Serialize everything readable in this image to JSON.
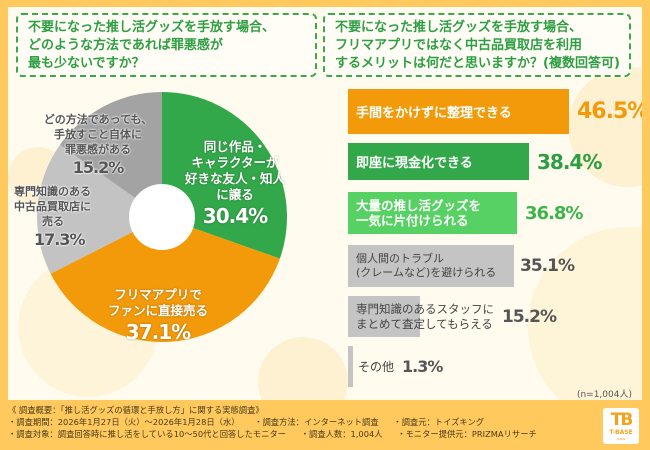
{
  "left_question": {
    "lines": [
      "不要になった推し活グッズを手放す場合、",
      "どのような方法であれば罪悪感が",
      "最も少ないですか？"
    ]
  },
  "right_question": {
    "lines": [
      "不要になった推し活グッズを手放す場合、",
      "フリマアプリではなく中古品買取店を利用",
      "するメリットは何だと思いますか？(複数回答可)"
    ]
  },
  "pie": {
    "slices": [
      {
        "lines": [
          "同じ作品・",
          "キャラクターが",
          "好きな友人・知人",
          "に譲る"
        ],
        "pct": "30.4%",
        "color": "#33A84A"
      },
      {
        "lines": [
          "フリマアプリで",
          "ファンに直接売る"
        ],
        "pct": "37.1%",
        "color": "#F39A0A"
      },
      {
        "lines": [
          "専門知識のある",
          "中古品買取店に",
          "売る"
        ],
        "pct": "17.3%",
        "color": "#C3C3C3"
      },
      {
        "lines": [
          "どの方法であっても、",
          "手放すこと自体に",
          "罪悪感がある"
        ],
        "pct": "15.2%",
        "color": "#A3A3A3"
      }
    ]
  },
  "bars": {
    "items": [
      {
        "lines": [
          "手間をかけずに整理できる"
        ],
        "pct": "46.5%",
        "color": "#F39A0A",
        "pct_color": "#F39A0A"
      },
      {
        "lines": [
          "即座に現金化できる"
        ],
        "pct": "38.4%",
        "color": "#33A84A",
        "pct_color": "#2E9E43"
      },
      {
        "lines": [
          "大量の推し活グッズを",
          "一気に片付けられる"
        ],
        "pct": "36.8%",
        "color": "#57D163",
        "pct_color": "#3BB54A"
      },
      {
        "lines": [
          "個人間のトラブル",
          "(クレームなど)を避けられる"
        ],
        "pct": "35.1%",
        "color": "#C4C4C4",
        "pct_color": "#555555"
      },
      {
        "lines": [
          "専門知識のあるスタッフに",
          "まとめて査定してもらえる"
        ],
        "pct": "15.2%",
        "color": "#C4C4C4",
        "pct_color": "#555555"
      },
      {
        "lines": [
          "その他"
        ],
        "pct": "1.3%",
        "color": "#C4C4C4",
        "pct_color": "#555555"
      }
    ],
    "n_note": "(n=1,004人)"
  },
  "footer": {
    "line1": "《 調査概要：「推し活グッズの循環と手放し方」に関する実態調査》",
    "period": "・調査期間：2026年1月27日（火）～2026年1月28日（水）",
    "method": "・調査方法：インターネット調査",
    "source": "・調査元：トイズキング",
    "target": "・調査対象：調査回答時に推し活をしている10～50代と回答したモニター",
    "count": "・調査人数：1,004人",
    "provider": "・モニター提供元：PRIZMAリサーチ"
  },
  "logo": {
    "mark": "TB",
    "name": "T-BASE",
    "sub": "JAPAN"
  },
  "chart_data": [
    {
      "type": "pie",
      "title": "不要になった推し活グッズを手放す場合、どのような方法であれば罪悪感が最も少ないですか？",
      "categories": [
        "同じ作品・キャラクターが好きな友人・知人に譲る",
        "フリマアプリでファンに直接売る",
        "専門知識のある中古品買取店に売る",
        "どの方法であっても、手放すこと自体に罪悪感がある"
      ],
      "values": [
        30.4,
        37.1,
        17.3,
        15.2
      ],
      "unit": "%",
      "donut": true
    },
    {
      "type": "bar",
      "orientation": "horizontal",
      "title": "不要になった推し活グッズを手放す場合、フリマアプリではなく中古品買取店を利用するメリットは何だと思いますか？(複数回答可)",
      "categories": [
        "手間をかけずに整理できる",
        "即座に現金化できる",
        "大量の推し活グッズを一気に片付けられる",
        "個人間のトラブル(クレームなど)を避けられる",
        "専門知識のあるスタッフにまとめて査定してもらえる",
        "その他"
      ],
      "values": [
        46.5,
        38.4,
        36.8,
        35.1,
        15.2,
        1.3
      ],
      "unit": "%",
      "n": "n=1,004人"
    }
  ]
}
